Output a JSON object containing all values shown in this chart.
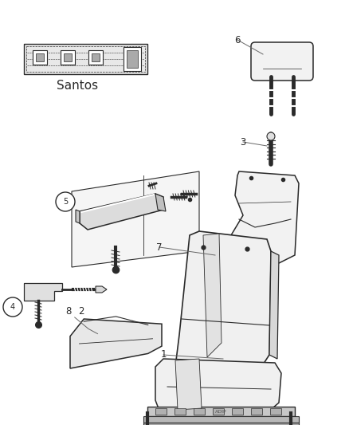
{
  "background_color": "#ffffff",
  "line_color": "#2a2a2a",
  "label_color": "#666666",
  "fabric_label": "Santos",
  "figsize": [
    4.38,
    5.33
  ],
  "dpi": 100
}
